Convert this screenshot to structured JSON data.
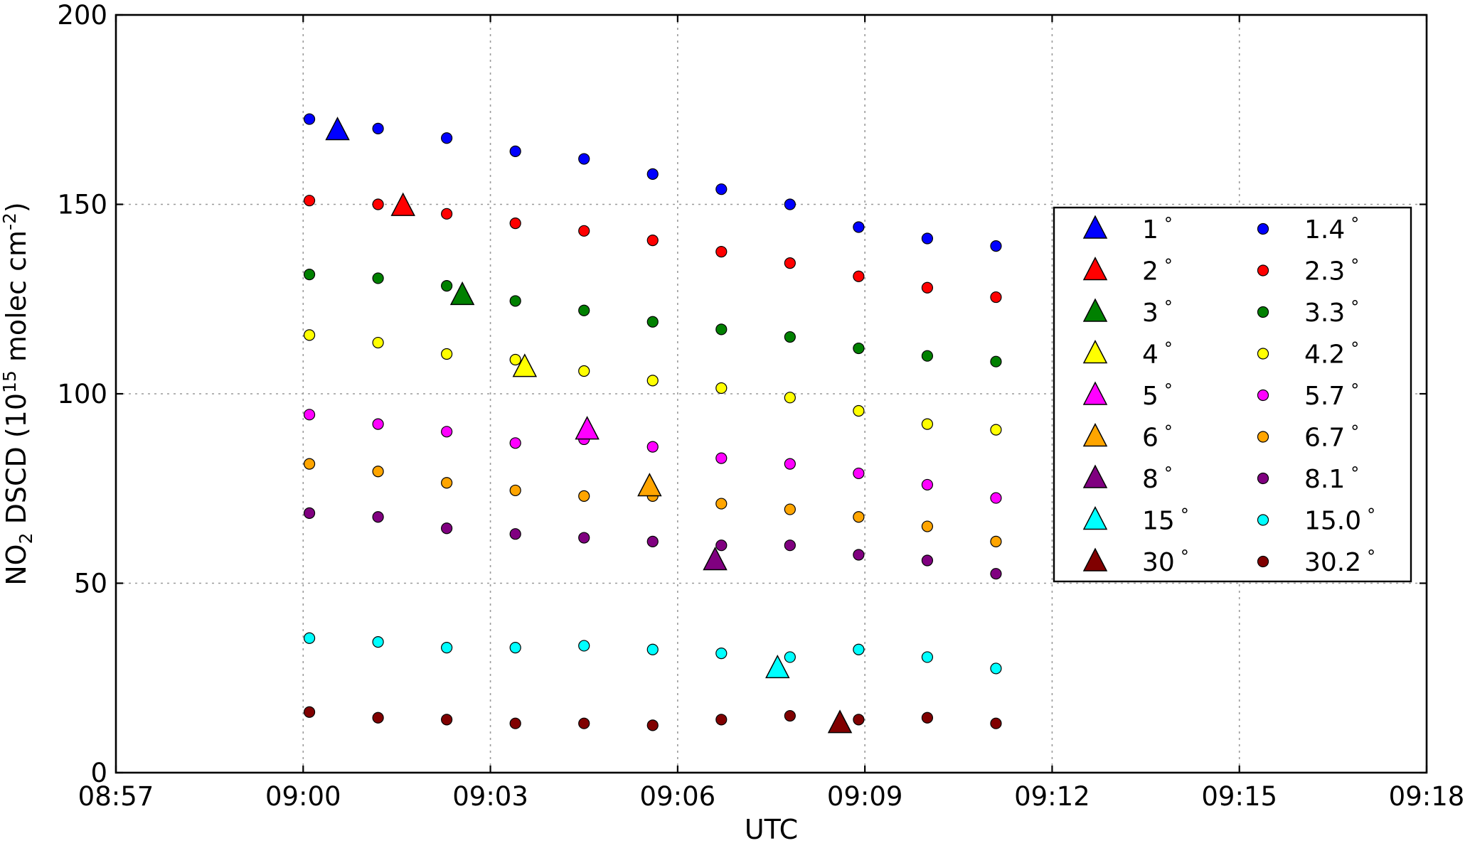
{
  "chart_data": {
    "type": "scatter",
    "xlabel": "UTC",
    "ylabel_parts": [
      "NO",
      "2",
      " DSCD (10",
      "15",
      " molec cm",
      "-2",
      ")"
    ],
    "xlim": [
      "08:57",
      "09:18"
    ],
    "ylim": [
      0,
      200
    ],
    "x_ticks": [
      "08:57",
      "09:00",
      "09:03",
      "09:06",
      "09:09",
      "09:12",
      "09:15",
      "09:18"
    ],
    "y_ticks": [
      0,
      50,
      100,
      150,
      200
    ],
    "grid": true,
    "legend_position": "right",
    "degree_symbol": "°",
    "circle_times": [
      "09:00:06",
      "09:01:12",
      "09:02:18",
      "09:03:24",
      "09:04:30",
      "09:05:36",
      "09:06:42",
      "09:07:48",
      "09:08:54",
      "09:10:00",
      "09:11:06"
    ],
    "triangle_series": [
      {
        "name": "1",
        "color": "#0000ff",
        "x": "09:00:33",
        "y": 169.5
      },
      {
        "name": "2",
        "color": "#ff0000",
        "x": "09:01:36",
        "y": 149.5
      },
      {
        "name": "3",
        "color": "#008000",
        "x": "09:02:33",
        "y": 126.0
      },
      {
        "name": "4",
        "color": "#ffff00",
        "x": "09:03:33",
        "y": 107.0
      },
      {
        "name": "5",
        "color": "#ff00ff",
        "x": "09:04:33",
        "y": 90.5
      },
      {
        "name": "6",
        "color": "#ffa500",
        "x": "09:05:33",
        "y": 75.5
      },
      {
        "name": "8",
        "color": "#800080",
        "x": "09:06:36",
        "y": 56.0
      },
      {
        "name": "15",
        "color": "#00ffff",
        "x": "09:07:36",
        "y": 27.5
      },
      {
        "name": "30",
        "color": "#800000",
        "x": "09:08:36",
        "y": 13.0
      }
    ],
    "circle_series": [
      {
        "name": "1.4",
        "color": "#0000ff",
        "y": [
          172.5,
          170.0,
          167.5,
          164.0,
          162.0,
          158.0,
          154.0,
          150.0,
          144.0,
          141.0,
          139.0
        ]
      },
      {
        "name": "2.3",
        "color": "#ff0000",
        "y": [
          151.0,
          150.0,
          147.5,
          145.0,
          143.0,
          140.5,
          137.5,
          134.5,
          131.0,
          128.0,
          125.5
        ]
      },
      {
        "name": "3.3",
        "color": "#008000",
        "y": [
          131.5,
          130.5,
          128.5,
          124.5,
          122.0,
          119.0,
          117.0,
          115.0,
          112.0,
          110.0,
          108.5
        ]
      },
      {
        "name": "4.2",
        "color": "#ffff00",
        "y": [
          115.5,
          113.5,
          110.5,
          109.0,
          106.0,
          103.5,
          101.5,
          99.0,
          95.5,
          92.0,
          90.5
        ]
      },
      {
        "name": "5.7",
        "color": "#ff00ff",
        "y": [
          94.5,
          92.0,
          90.0,
          87.0,
          88.0,
          86.0,
          83.0,
          81.5,
          79.0,
          76.0,
          72.5
        ]
      },
      {
        "name": "6.7",
        "color": "#ffa500",
        "y": [
          81.5,
          79.5,
          76.5,
          74.5,
          73.0,
          73.0,
          71.0,
          69.5,
          67.5,
          65.0,
          61.0
        ]
      },
      {
        "name": "8.1",
        "color": "#800080",
        "y": [
          68.5,
          67.5,
          64.5,
          63.0,
          62.0,
          61.0,
          60.0,
          60.0,
          57.5,
          56.0,
          52.5
        ]
      },
      {
        "name": "15.0",
        "color": "#00ffff",
        "y": [
          35.5,
          34.5,
          33.0,
          33.0,
          33.5,
          32.5,
          31.5,
          30.5,
          32.5,
          30.5,
          27.5
        ]
      },
      {
        "name": "30.2",
        "color": "#800000",
        "y": [
          16.0,
          14.5,
          14.0,
          13.0,
          13.0,
          12.5,
          14.0,
          15.0,
          14.0,
          14.5,
          13.0
        ]
      }
    ]
  }
}
